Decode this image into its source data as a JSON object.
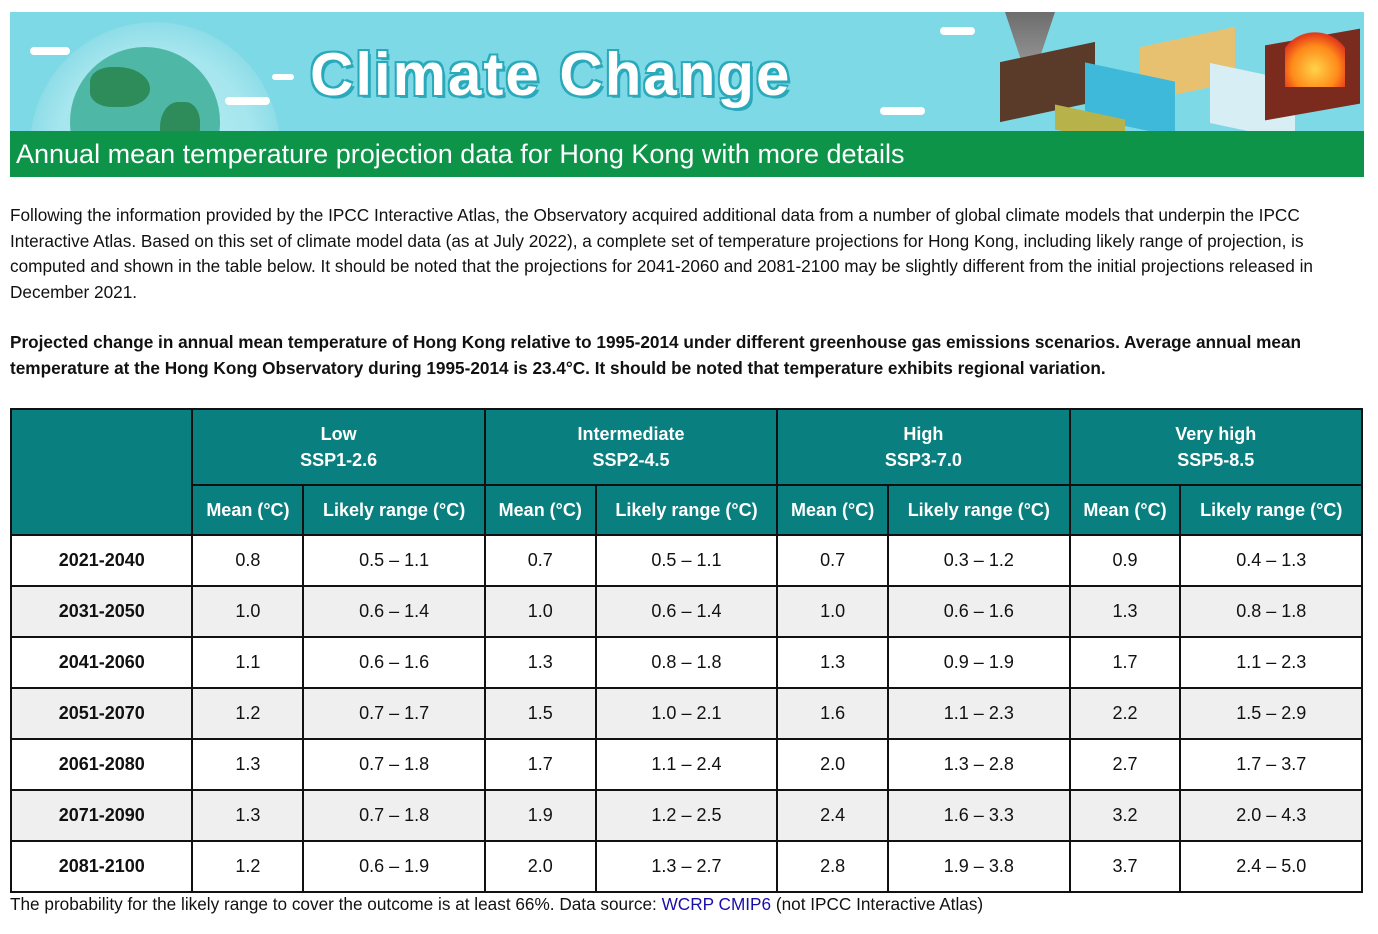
{
  "banner": {
    "title": "Climate Change",
    "subtitle": "Annual mean temperature projection data for Hong Kong with more details",
    "colors": {
      "sky": "#7dd9e6",
      "bar": "#0d9449"
    }
  },
  "intro": "Following the information provided by the IPCC Interactive Atlas, the Observatory acquired additional data from a number of global climate models that underpin the IPCC Interactive Atlas. Based on this set of climate model data (as at July 2022), a complete set of temperature projections for Hong Kong, including likely range of projection, is computed and shown in the table below. It should be noted that the projections for 2041-2060 and 2081-2100 may be slightly different from the initial projections released in December 2021.",
  "caption": "Projected change in annual mean temperature of Hong Kong relative to 1995-2014 under different greenhouse gas emissions scenarios. Average annual mean temperature at the Hong Kong Observatory during 1995-2014 is 23.4°C. It should be noted that temperature exhibits regional variation.",
  "table": {
    "header_color": "#0a7f7f",
    "scenarios": [
      {
        "level": "Low",
        "code": "SSP1-2.6"
      },
      {
        "level": "Intermediate",
        "code": "SSP2-4.5"
      },
      {
        "level": "High",
        "code": "SSP3-7.0"
      },
      {
        "level": "Very high",
        "code": "SSP5-8.5"
      }
    ],
    "mean_label": "Mean (°C)",
    "range_label": "Likely range (°C)",
    "rows": [
      {
        "period": "2021-2040",
        "cells": [
          "0.8",
          "0.5 – 1.1",
          "0.7",
          "0.5 – 1.1",
          "0.7",
          "0.3 – 1.2",
          "0.9",
          "0.4 – 1.3"
        ]
      },
      {
        "period": "2031-2050",
        "cells": [
          "1.0",
          "0.6 – 1.4",
          "1.0",
          "0.6 – 1.4",
          "1.0",
          "0.6 – 1.6",
          "1.3",
          "0.8 – 1.8"
        ]
      },
      {
        "period": "2041-2060",
        "cells": [
          "1.1",
          "0.6 – 1.6",
          "1.3",
          "0.8 – 1.8",
          "1.3",
          "0.9 – 1.9",
          "1.7",
          "1.1 – 2.3"
        ]
      },
      {
        "period": "2051-2070",
        "cells": [
          "1.2",
          "0.7 – 1.7",
          "1.5",
          "1.0 – 2.1",
          "1.6",
          "1.1 – 2.3",
          "2.2",
          "1.5 – 2.9"
        ]
      },
      {
        "period": "2061-2080",
        "cells": [
          "1.3",
          "0.7 – 1.8",
          "1.7",
          "1.1 – 2.4",
          "2.0",
          "1.3 – 2.8",
          "2.7",
          "1.7 – 3.7"
        ]
      },
      {
        "period": "2071-2090",
        "cells": [
          "1.3",
          "0.7 – 1.8",
          "1.9",
          "1.2 – 2.5",
          "2.4",
          "1.6 – 3.3",
          "3.2",
          "2.0 – 4.3"
        ]
      },
      {
        "period": "2081-2100",
        "cells": [
          "1.2",
          "0.6 – 1.9",
          "2.0",
          "1.3 – 2.7",
          "2.8",
          "1.9 – 3.8",
          "3.7",
          "2.4 – 5.0"
        ]
      }
    ]
  },
  "footnote": {
    "prefix": "The probability for the likely range to cover the outcome is at least 66%. Data source: ",
    "link": "WCRP CMIP6",
    "suffix": " (not IPCC Interactive Atlas)"
  }
}
